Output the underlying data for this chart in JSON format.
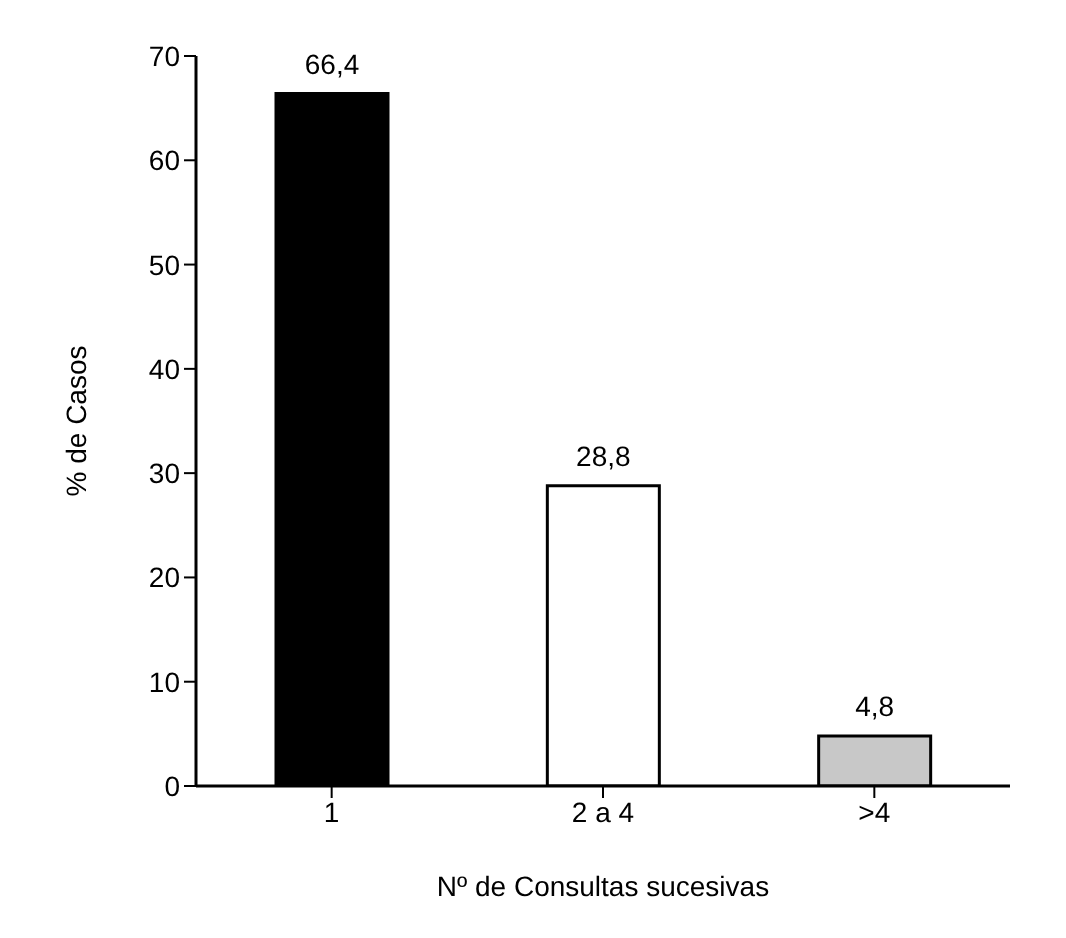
{
  "chart_data": {
    "type": "bar",
    "xlabel": "Nº de Consultas sucesivas",
    "ylabel": "% de Casos",
    "categories": [
      "1",
      "2 a 4",
      ">4"
    ],
    "values": [
      66.4,
      28.8,
      4.8
    ],
    "colors": [
      "#000000",
      "#ffffff",
      "#c8c8c8"
    ],
    "value_labels": [
      "66,4",
      "28,8",
      "4,8"
    ],
    "ylim": [
      0,
      70
    ],
    "yticks": [
      0,
      10,
      20,
      30,
      40,
      50,
      60,
      70
    ],
    "grid": false,
    "legend": false
  }
}
